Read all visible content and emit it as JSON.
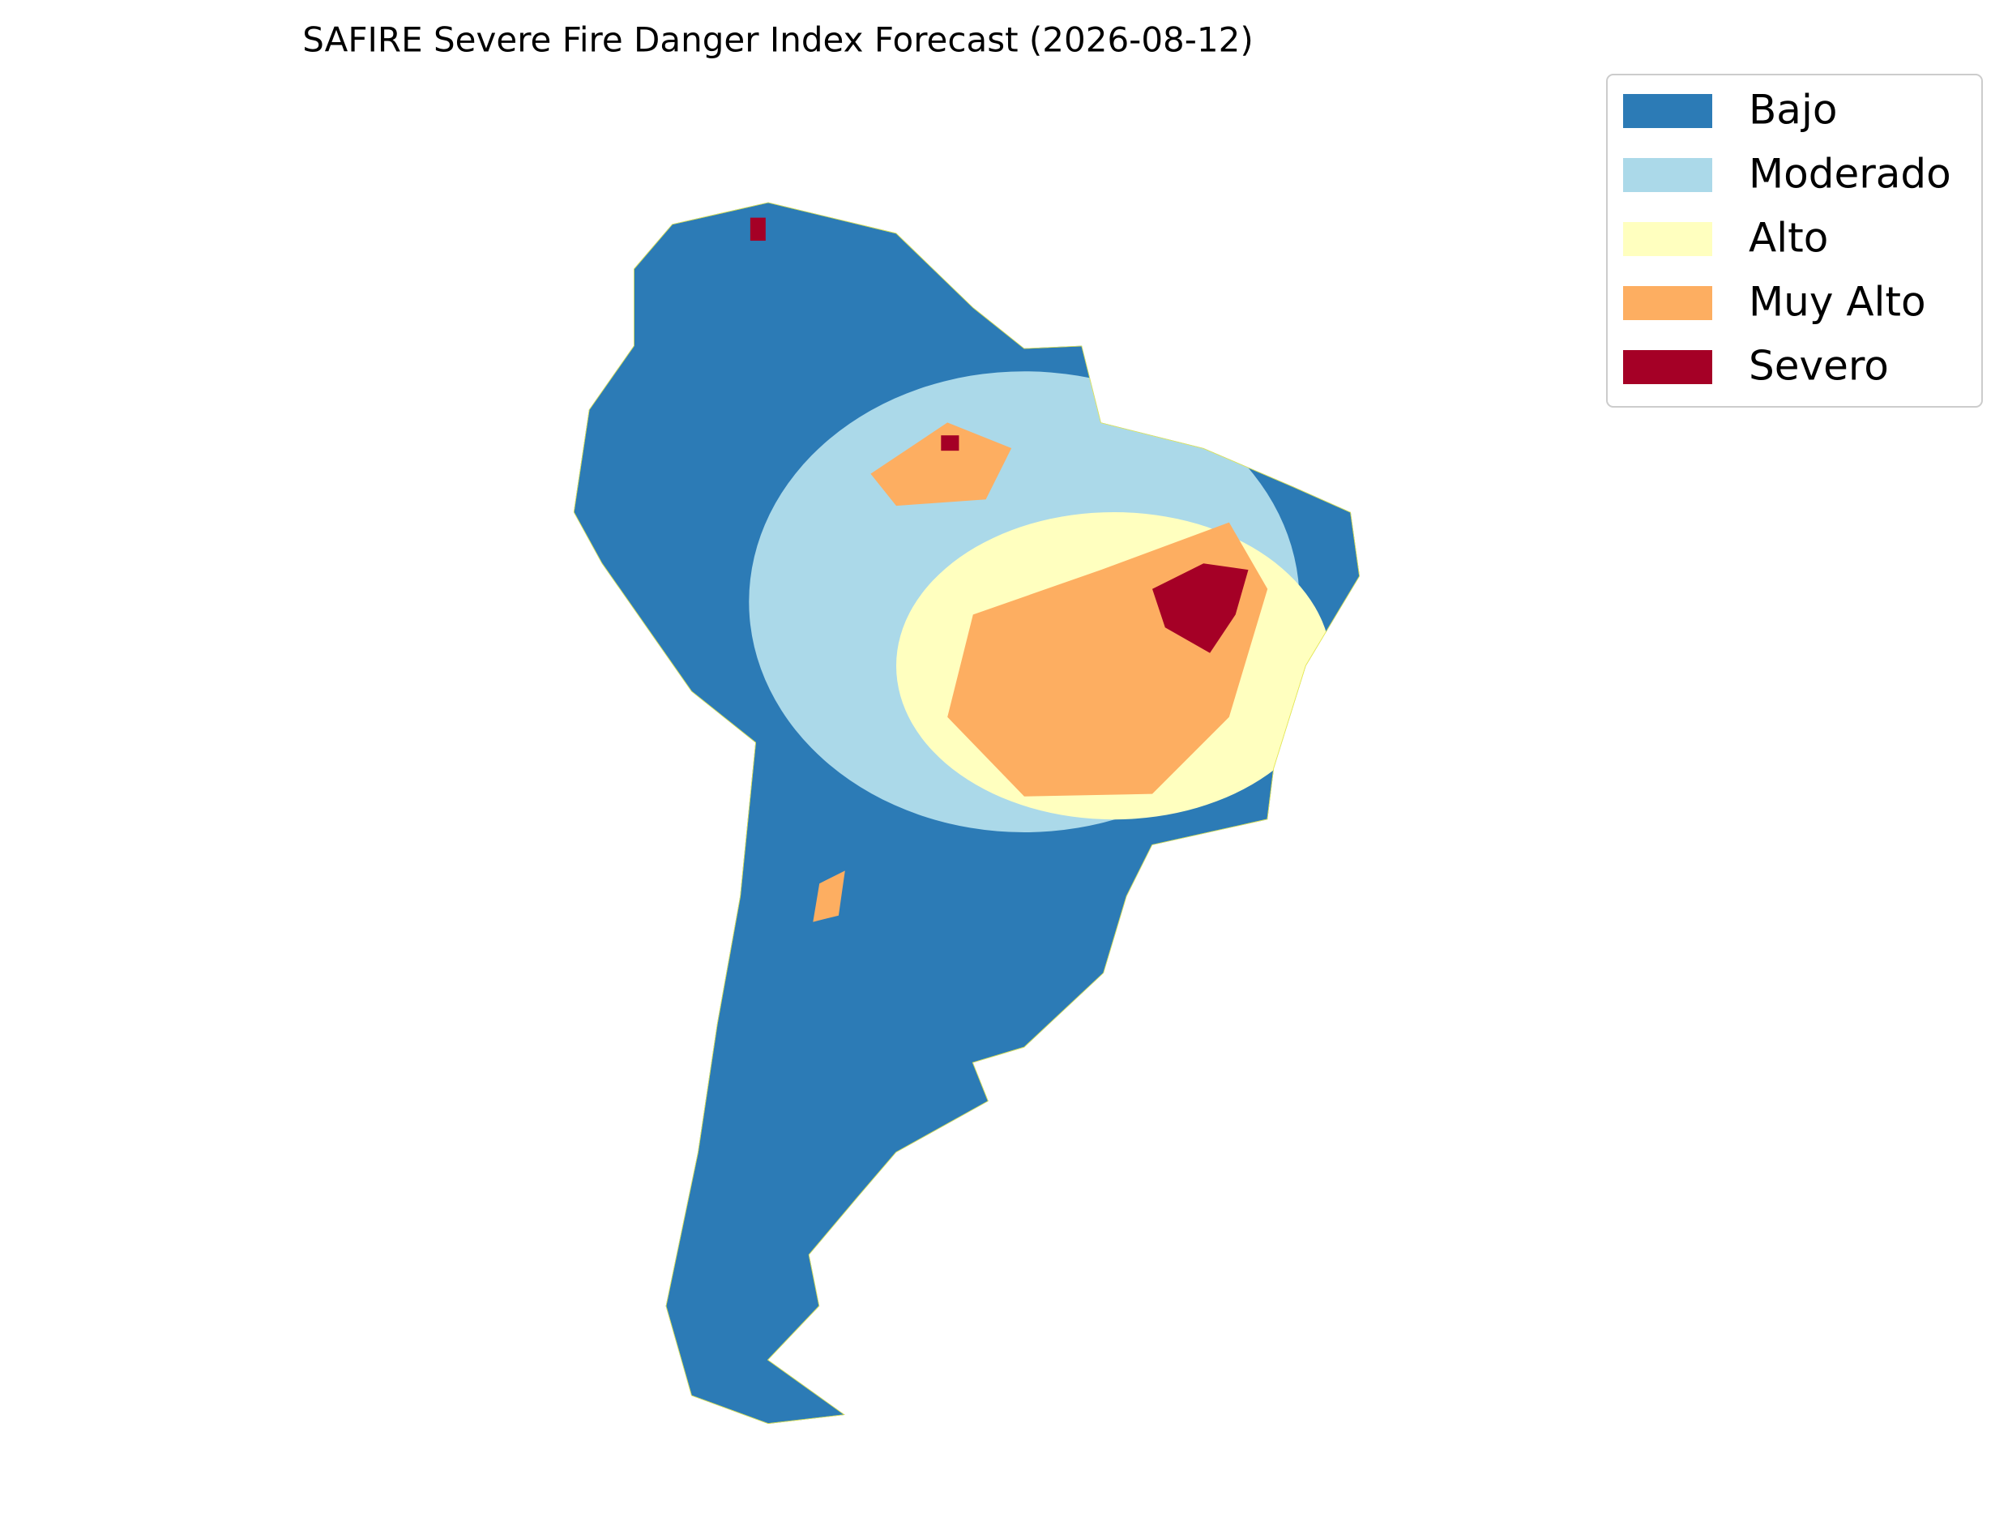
{
  "title": "SAFIRE Severe Fire Danger Index Forecast (2026-08-12)",
  "legend": {
    "items": [
      {
        "label": "Bajo",
        "color": "#2c7bb6"
      },
      {
        "label": "Moderado",
        "color": "#abd9e9"
      },
      {
        "label": "Alto",
        "color": "#ffffbf"
      },
      {
        "label": "Muy Alto",
        "color": "#fdae61"
      },
      {
        "label": "Severo",
        "color": "#a50026"
      }
    ]
  }
}
